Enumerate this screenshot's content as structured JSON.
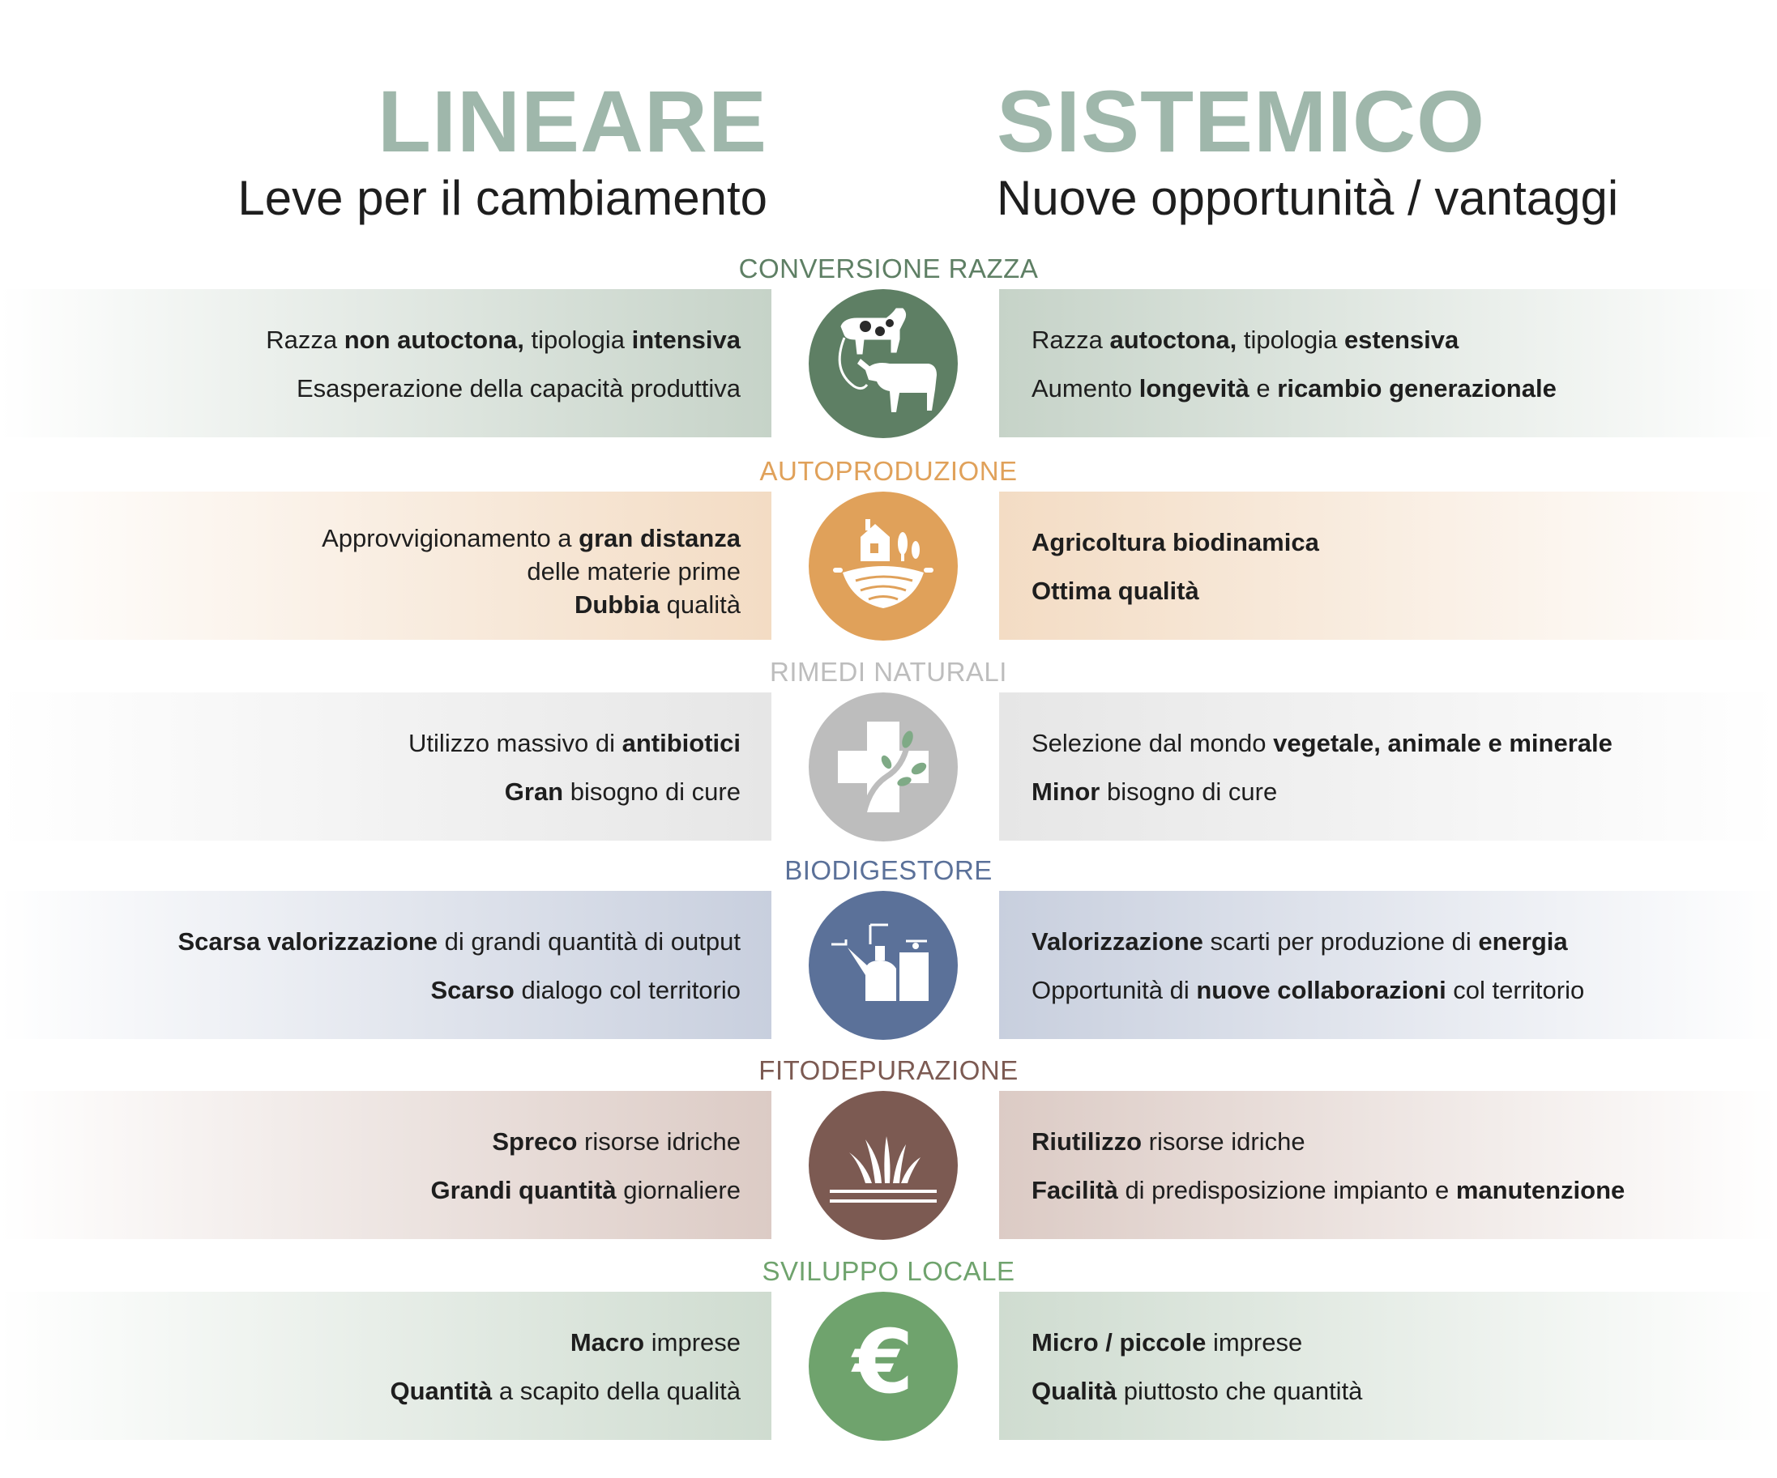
{
  "header": {
    "left_title": "LINEARE",
    "left_subtitle": "Leve per il cambiamento",
    "right_title": "SISTEMICO",
    "right_subtitle": "Nuove opportunità / vantaggi",
    "title_color": "#9fb7ab"
  },
  "sections": [
    {
      "label": "CONVERSIONE RAZZA",
      "color": "#5e7f64",
      "band_color": "#c6d3c8",
      "icon": "cow-conversion-icon",
      "left": [
        [
          {
            "t": "Razza ",
            "b": false
          },
          {
            "t": "non autoctona,",
            "b": true
          },
          {
            "t": " tipologia ",
            "b": false
          },
          {
            "t": "intensiva",
            "b": true
          }
        ],
        [
          {
            "t": "Esasperazione della capacità produttiva",
            "b": false
          }
        ]
      ],
      "right": [
        [
          {
            "t": "Razza ",
            "b": false
          },
          {
            "t": "autoctona,",
            "b": true
          },
          {
            "t": " tipologia ",
            "b": false
          },
          {
            "t": "estensiva",
            "b": true
          }
        ],
        [
          {
            "t": "Aumento ",
            "b": false
          },
          {
            "t": "longevità",
            "b": true
          },
          {
            "t": " e ",
            "b": false
          },
          {
            "t": "ricambio generazionale",
            "b": true
          }
        ]
      ]
    },
    {
      "label": "AUTOPRODUZIONE",
      "color": "#e0a15a",
      "band_color": "#f3dcc4",
      "icon": "farmhouse-icon",
      "left": [
        [
          {
            "t": "Approvvigionamento a ",
            "b": false
          },
          {
            "t": "gran distanza",
            "b": true
          }
        ],
        [
          {
            "t": "delle materie prime",
            "b": false
          }
        ],
        [
          {
            "t": "Dubbia",
            "b": true
          },
          {
            "t": " qualità",
            "b": false
          }
        ]
      ],
      "right": [
        [
          {
            "t": "Agricoltura biodinamica",
            "b": true
          }
        ],
        [
          {
            "t": "Ottima qualità",
            "b": true
          }
        ]
      ]
    },
    {
      "label": "RIMEDI NATURALI",
      "color": "#bdbdbd",
      "band_color": "#e6e6e6",
      "icon": "medical-cross-plant-icon",
      "left": [
        [
          {
            "t": "Utilizzo massivo di ",
            "b": false
          },
          {
            "t": "antibiotici",
            "b": true
          }
        ],
        [
          {
            "t": "Gran",
            "b": true
          },
          {
            "t": " bisogno di cure",
            "b": false
          }
        ]
      ],
      "right": [
        [
          {
            "t": "Selezione dal mondo ",
            "b": false
          },
          {
            "t": "vegetale, animale e minerale",
            "b": true
          }
        ],
        [
          {
            "t": "Minor",
            "b": true
          },
          {
            "t": " bisogno di cure",
            "b": false
          }
        ]
      ]
    },
    {
      "label": "BIODIGESTORE",
      "color": "#5b7199",
      "band_color": "#c8cfde",
      "icon": "biodigester-icon",
      "left": [
        [
          {
            "t": "Scarsa valorizzazione",
            "b": true
          },
          {
            "t": " di grandi quantità di output",
            "b": false
          }
        ],
        [
          {
            "t": "Scarso",
            "b": true
          },
          {
            "t": " dialogo col territorio",
            "b": false
          }
        ]
      ],
      "right": [
        [
          {
            "t": "Valorizzazione",
            "b": true
          },
          {
            "t": " scarti per produzione di ",
            "b": false
          },
          {
            "t": "energia",
            "b": true
          }
        ],
        [
          {
            "t": "Opportunità di ",
            "b": false
          },
          {
            "t": "nuove collaborazioni",
            "b": true
          },
          {
            "t": " col territorio",
            "b": false
          }
        ]
      ]
    },
    {
      "label": "FITODEPURAZIONE",
      "color": "#7c5a52",
      "band_color": "#dccbc5",
      "icon": "reeds-water-icon",
      "left": [
        [
          {
            "t": "Spreco",
            "b": true
          },
          {
            "t": " risorse idriche",
            "b": false
          }
        ],
        [
          {
            "t": "Grandi quantità",
            "b": true
          },
          {
            "t": " giornaliere",
            "b": false
          }
        ]
      ],
      "right": [
        [
          {
            "t": "Riutilizzo",
            "b": true
          },
          {
            "t": " risorse idriche",
            "b": false
          }
        ],
        [
          {
            "t": "Facilità",
            "b": true
          },
          {
            "t": " di predisposizione impianto e ",
            "b": false
          },
          {
            "t": "manutenzione",
            "b": true
          }
        ]
      ]
    },
    {
      "label": "SVILUPPO LOCALE",
      "color": "#6fa36d",
      "band_color": "#cfdcd0",
      "icon": "euro-icon",
      "left": [
        [
          {
            "t": "Macro",
            "b": true
          },
          {
            "t": " imprese",
            "b": false
          }
        ],
        [
          {
            "t": "Quantità",
            "b": true
          },
          {
            "t": " a scapito della qualità",
            "b": false
          }
        ]
      ],
      "right": [
        [
          {
            "t": "Micro / piccole",
            "b": true
          },
          {
            "t": " imprese",
            "b": false
          }
        ],
        [
          {
            "t": "Qualità",
            "b": true
          },
          {
            "t": " piuttosto che quantità",
            "b": false
          }
        ]
      ]
    }
  ]
}
